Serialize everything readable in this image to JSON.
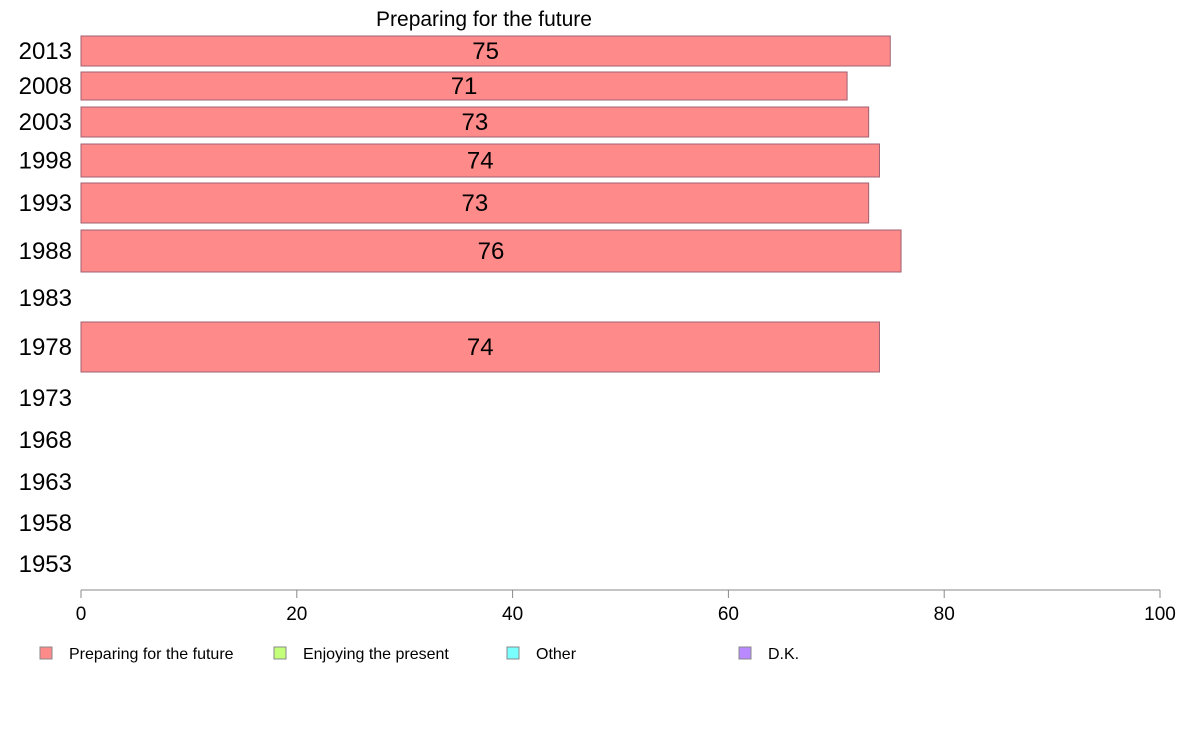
{
  "chart_data": {
    "type": "bar",
    "orientation": "horizontal",
    "title": "Preparing for the future",
    "xlabel": "",
    "ylabel": "",
    "xlim": [
      0,
      100
    ],
    "xticks": [
      0,
      20,
      40,
      60,
      80,
      100
    ],
    "grid": false,
    "legend_position": "bottom",
    "categories": [
      "2013",
      "2008",
      "2003",
      "1998",
      "1993",
      "1988",
      "1983",
      "1978",
      "1973",
      "1968",
      "1963",
      "1958",
      "1953"
    ],
    "series": [
      {
        "name": "Preparing for the future",
        "color": "#ff8a8a",
        "values": [
          75,
          71,
          73,
          74,
          73,
          76,
          null,
          74,
          null,
          null,
          null,
          null,
          null
        ]
      }
    ],
    "legend": [
      {
        "label": "Preparing for the future",
        "color": "#ff8a8a"
      },
      {
        "label": "Enjoying the present",
        "color": "#c3ff7a"
      },
      {
        "label": "Other",
        "color": "#7affff"
      },
      {
        "label": "D.K.",
        "color": "#b98aff"
      }
    ]
  }
}
